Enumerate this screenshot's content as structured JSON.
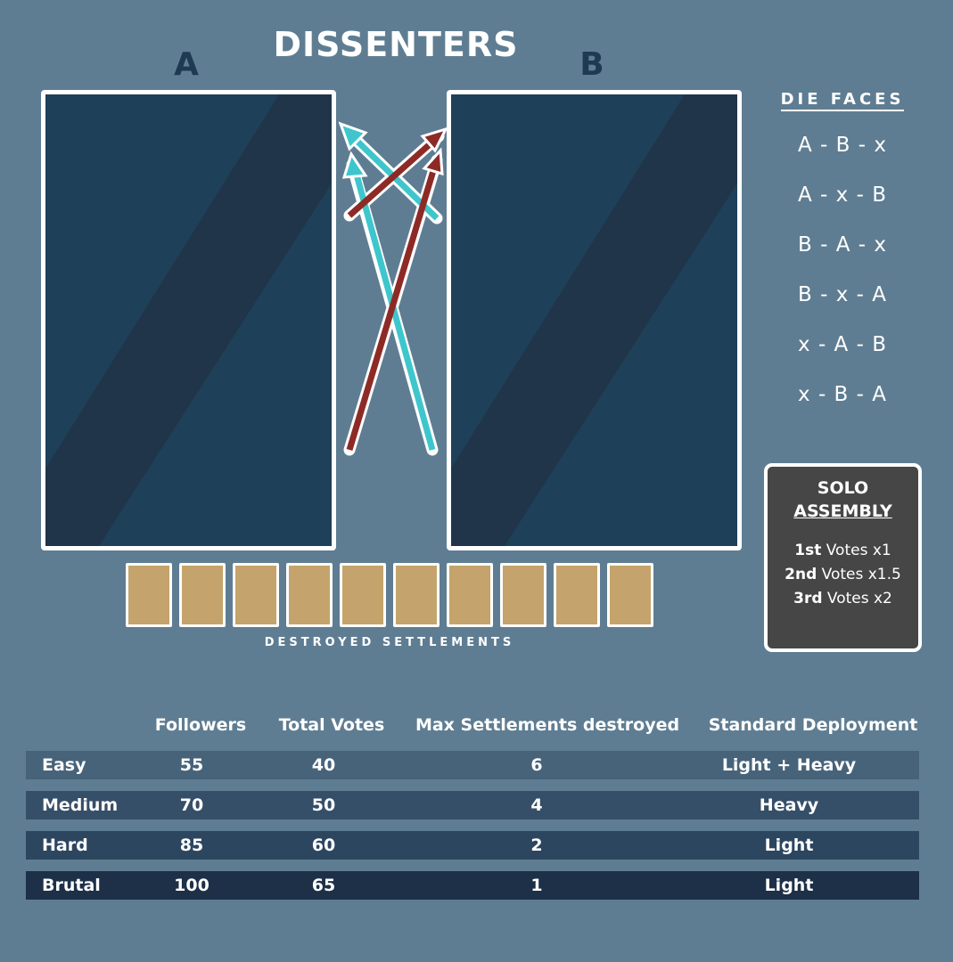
{
  "title": "DISSENTERS",
  "panels": {
    "left_label": "A",
    "right_label": "B"
  },
  "destroyed_settlements": {
    "label": "DESTROYED SETTLEMENTS",
    "slot_count": 10
  },
  "die_faces": {
    "title": "DIE FACES",
    "faces": [
      "A - B - x",
      "A - x - B",
      "B - A - x",
      "B - x - A",
      "x - A - B",
      "x - B - A"
    ]
  },
  "solo_assembly": {
    "title_line1": "SOLO",
    "title_line2": "ASSEMBLY",
    "lines": [
      {
        "rank": "1st",
        "text": " Votes x1"
      },
      {
        "rank": "2nd",
        "text": " Votes x1.5"
      },
      {
        "rank": "3rd",
        "text": " Votes x2"
      }
    ]
  },
  "difficulty_table": {
    "headers": [
      "Followers",
      "Total Votes",
      "Max Settlements destroyed",
      "Standard Deployment"
    ],
    "rows": [
      {
        "level": "Easy",
        "followers": "55",
        "total_votes": "40",
        "max_destroyed": "6",
        "deployment": "Light + Heavy",
        "color": "#47637a"
      },
      {
        "level": "Medium",
        "followers": "70",
        "total_votes": "50",
        "max_destroyed": "4",
        "deployment": "Heavy",
        "color": "#364f68"
      },
      {
        "level": "Hard",
        "followers": "85",
        "total_votes": "60",
        "max_destroyed": "2",
        "deployment": "Light",
        "color": "#2c4660"
      },
      {
        "level": "Brutal",
        "followers": "100",
        "total_votes": "65",
        "max_destroyed": "1",
        "deployment": "Light",
        "color": "#1d3048"
      }
    ]
  },
  "colors": {
    "background": "#5f7d92",
    "panel": "#1e4058",
    "panel_stripe": "#21354a",
    "arrow_teal": "#3ec6cc",
    "arrow_red": "#8e2a26",
    "slot": "#c4a46c"
  }
}
